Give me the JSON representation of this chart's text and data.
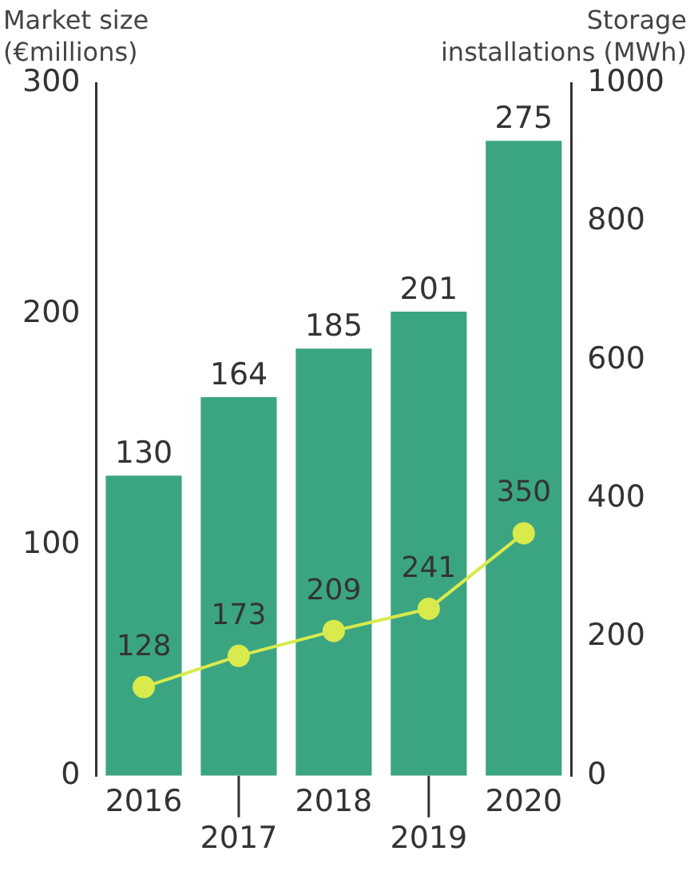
{
  "chart_data": {
    "type": "bar",
    "ylabel": "Market size\n(€millions)",
    "y2label": "Storage\ninstallations (MWh)",
    "categories": [
      "2016",
      "2017",
      "2018",
      "2019",
      "2020"
    ],
    "series": [
      {
        "color": "#3ba581",
        "values": [
          130,
          164,
          185,
          201,
          275
        ]
      },
      {
        "type": "line",
        "axis": "y2",
        "color": "#d8ea4c",
        "values": [
          128,
          173,
          209,
          241,
          350
        ]
      }
    ],
    "ylim": [
      0,
      300
    ],
    "yticks": [
      0,
      100,
      200,
      300
    ],
    "y2lim": [
      0,
      1000
    ],
    "y2ticks": [
      0,
      200,
      400,
      600,
      800,
      1000
    ],
    "data_labels": true,
    "grid": false,
    "legend": false,
    "marker": "circle",
    "line_style": "solid"
  }
}
